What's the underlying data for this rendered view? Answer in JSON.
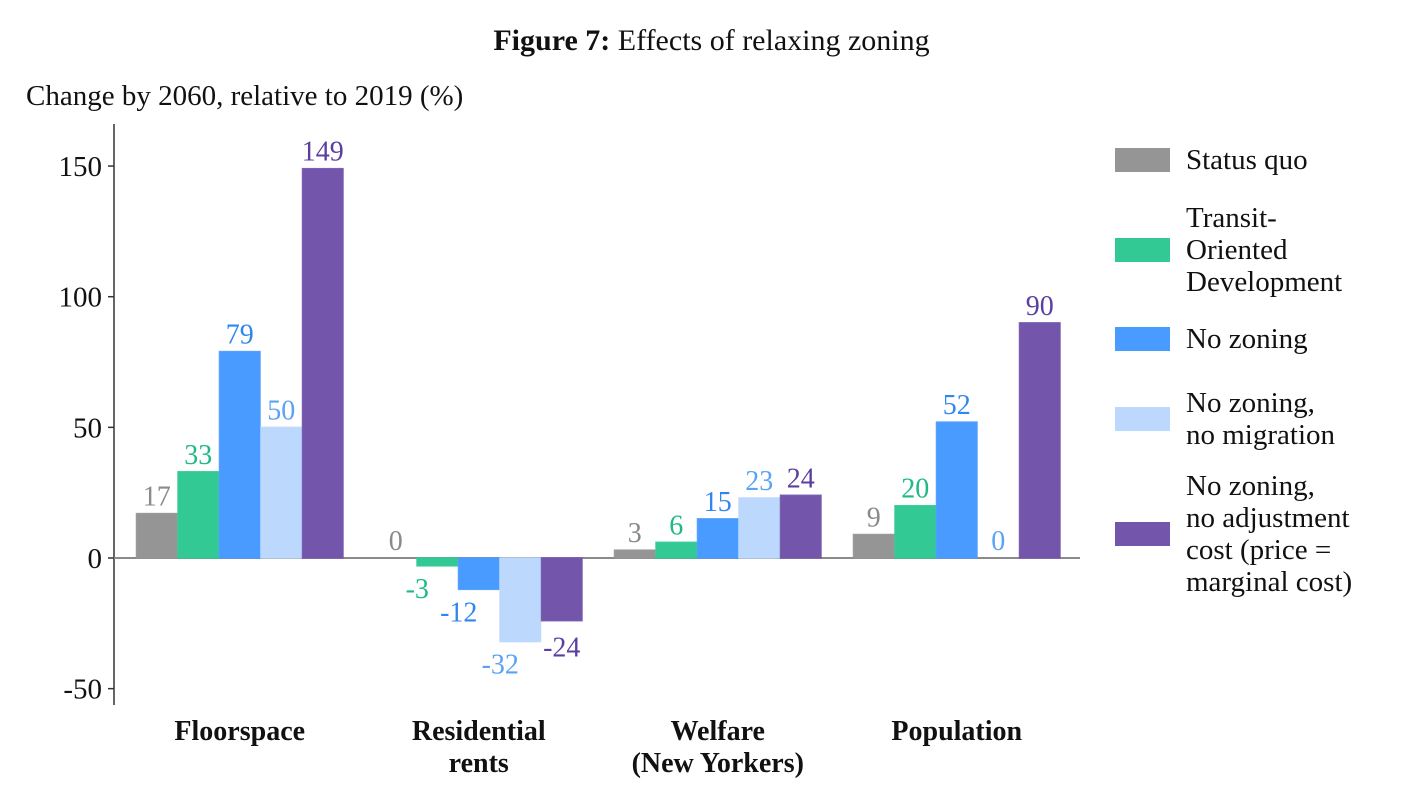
{
  "chart_data": {
    "type": "bar",
    "title_bold": "Figure 7:",
    "title_rest": " Effects of relaxing zoning",
    "ylabel": "Change by 2060, relative to 2019 (%)",
    "xlabel": "",
    "ylim": [
      -50,
      160
    ],
    "yticks": [
      -50,
      0,
      50,
      100,
      150
    ],
    "ytick_labels": [
      "-50",
      "0",
      "50",
      "100",
      "150"
    ],
    "grid": false,
    "legend_position": "right",
    "categories": [
      "Floorspace",
      "Residential\nrents",
      "Welfare\n(New Yorkers)",
      "Population"
    ],
    "series": [
      {
        "name": "Status quo",
        "color": "#959595",
        "label_color": "#8a8a8a",
        "values": [
          17,
          0,
          3,
          9
        ]
      },
      {
        "name": "Transit-\nOriented\nDevelopment",
        "color": "#33c995",
        "label_color": "#1fb985",
        "values": [
          33,
          -3,
          6,
          20
        ]
      },
      {
        "name": "No zoning",
        "color": "#4a9bff",
        "label_color": "#2f86f0",
        "values": [
          79,
          -12,
          15,
          52
        ]
      },
      {
        "name": "No zoning,\nno migration",
        "color": "#bcd8fd",
        "label_color": "#5aa2f2",
        "values": [
          50,
          -32,
          23,
          0
        ]
      },
      {
        "name": "No zoning,\nno adjustment\ncost (price =\nmarginal cost)",
        "color": "#7356ac",
        "label_color": "#5a3ea0",
        "values": [
          149,
          -24,
          24,
          90
        ]
      }
    ]
  }
}
